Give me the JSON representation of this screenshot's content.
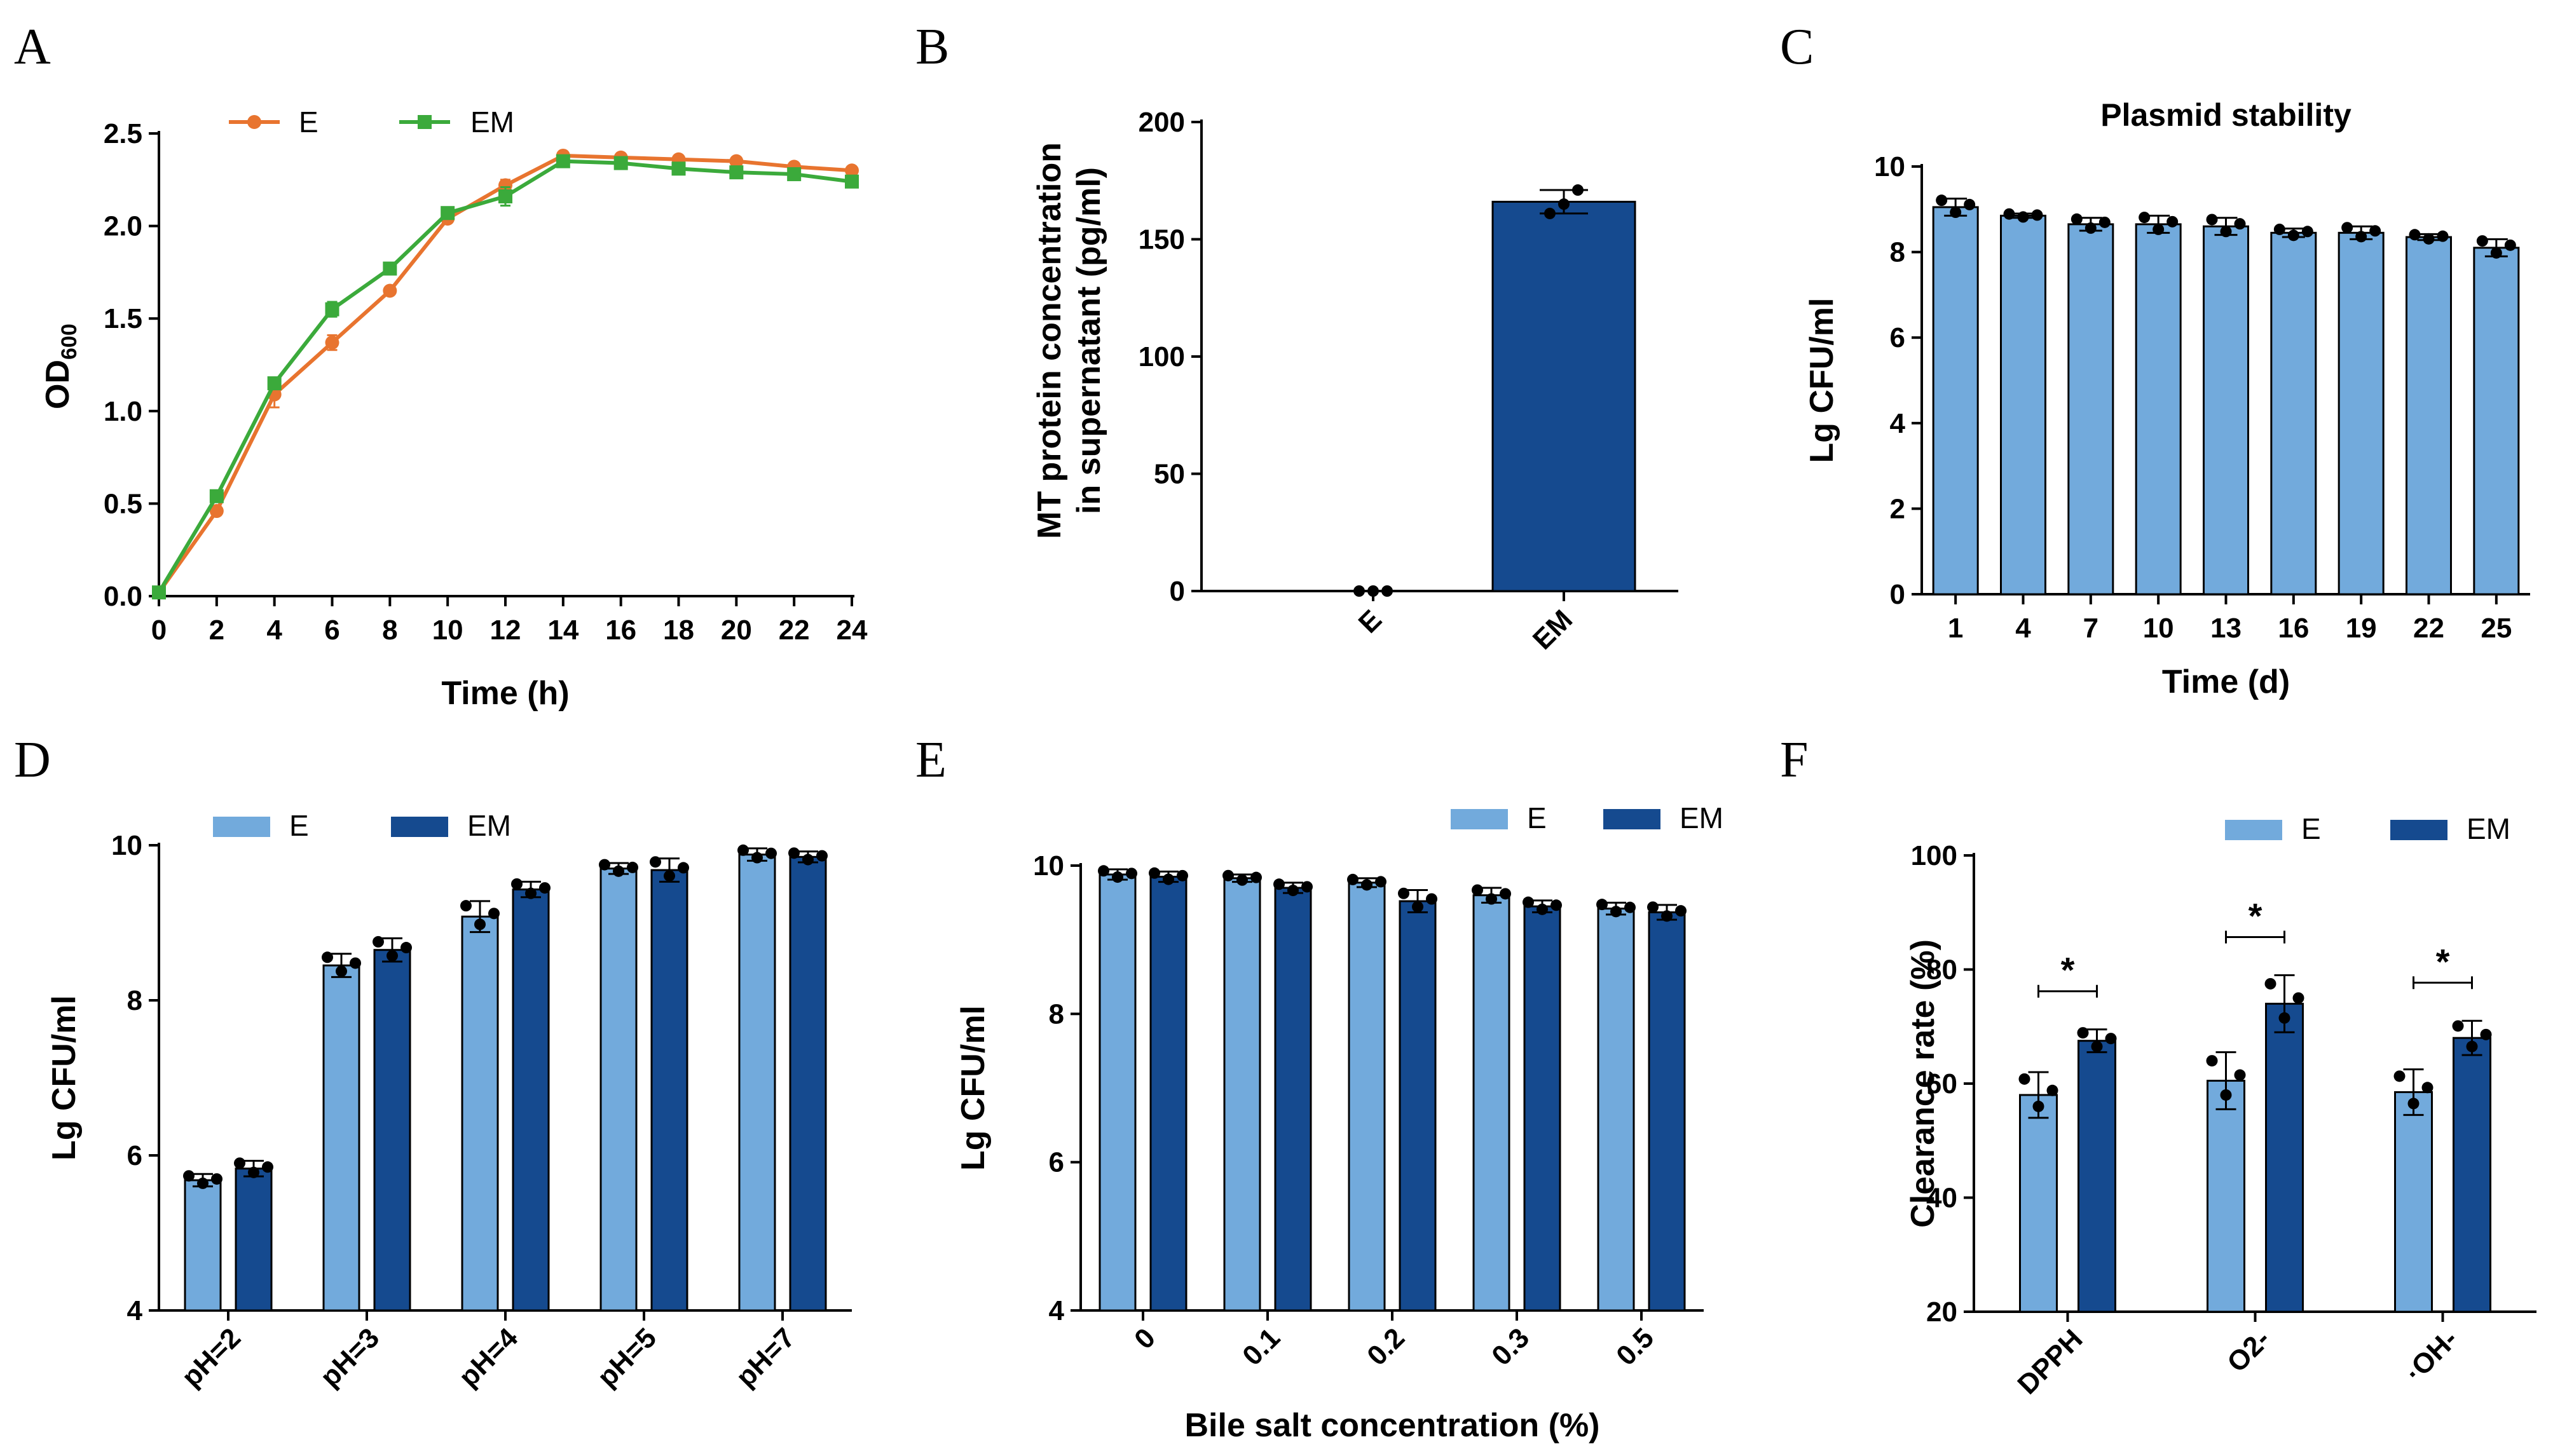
{
  "colors": {
    "orange": "#E8742F",
    "green": "#3BAA3B",
    "light_blue": "#72AADC",
    "dark_blue": "#154A8F",
    "axis": "#000000"
  },
  "chart_data": [
    {
      "panel": "A",
      "type": "line",
      "title": "",
      "xlabel": "Time (h)",
      "ylabel": "OD600",
      "ylabel_main": "OD",
      "ylabel_sub": "600",
      "x": [
        0,
        2,
        4,
        6,
        8,
        10,
        12,
        14,
        16,
        18,
        20,
        22,
        24
      ],
      "x_ticks": [
        "0",
        "2",
        "4",
        "6",
        "8",
        "10",
        "12",
        "14",
        "16",
        "18",
        "20",
        "22",
        "24"
      ],
      "xlim": [
        0,
        24
      ],
      "ylim": [
        0,
        2.5
      ],
      "y_ticks": [
        "0.0",
        "0.5",
        "1.0",
        "1.5",
        "2.0",
        "2.5"
      ],
      "series": [
        {
          "name": "E",
          "values": [
            0.02,
            0.46,
            1.09,
            1.37,
            1.65,
            2.04,
            2.22,
            2.38,
            2.37,
            2.36,
            2.35,
            2.32,
            2.3
          ],
          "errors": [
            0,
            0.02,
            0.07,
            0.04,
            0.02,
            0.02,
            0.03,
            0.01,
            0.01,
            0.01,
            0.01,
            0.01,
            0.01
          ]
        },
        {
          "name": "EM",
          "values": [
            0.02,
            0.54,
            1.15,
            1.55,
            1.77,
            2.07,
            2.16,
            2.35,
            2.34,
            2.31,
            2.29,
            2.28,
            2.24
          ],
          "errors": [
            0,
            0.02,
            0.03,
            0.04,
            0.02,
            0.02,
            0.05,
            0.01,
            0.01,
            0.01,
            0.02,
            0.01,
            0.02
          ]
        }
      ],
      "legend": [
        "E",
        "EM"
      ]
    },
    {
      "panel": "B",
      "type": "bar",
      "title": "",
      "xlabel": "",
      "ylabel_line1": "MT protein concentration",
      "ylabel_line2": "in supernatant (pg/ml)",
      "categories": [
        "E",
        "EM"
      ],
      "values": [
        0,
        166
      ],
      "errors": [
        0,
        5
      ],
      "points": [
        [
          0,
          0,
          0
        ],
        [
          161,
          165,
          171
        ]
      ],
      "ylim": [
        0,
        200
      ],
      "y_ticks": [
        "0",
        "50",
        "100",
        "150",
        "200"
      ]
    },
    {
      "panel": "C",
      "type": "bar",
      "title": "Plasmid stability",
      "xlabel": "Time (d)",
      "ylabel": "Lg CFU/ml",
      "categories": [
        "1",
        "4",
        "7",
        "10",
        "13",
        "16",
        "19",
        "22",
        "25"
      ],
      "values": [
        9.05,
        8.85,
        8.65,
        8.65,
        8.6,
        8.45,
        8.45,
        8.35,
        8.1
      ],
      "errors": [
        0.2,
        0.05,
        0.15,
        0.2,
        0.2,
        0.1,
        0.15,
        0.07,
        0.2
      ],
      "ylim": [
        0,
        10
      ],
      "y_ticks": [
        "0",
        "2",
        "4",
        "6",
        "8",
        "10"
      ]
    },
    {
      "panel": "D",
      "type": "bar",
      "title": "",
      "xlabel": "",
      "ylabel": "Lg CFU/ml",
      "categories": [
        "pH=2",
        "pH=3",
        "pH=4",
        "pH=5",
        "pH=7"
      ],
      "series": [
        {
          "name": "E",
          "values": [
            5.68,
            8.45,
            9.08,
            9.7,
            9.88
          ],
          "errors": [
            0.08,
            0.15,
            0.2,
            0.07,
            0.08
          ]
        },
        {
          "name": "EM",
          "values": [
            5.83,
            8.65,
            9.43,
            9.68,
            9.85
          ],
          "errors": [
            0.1,
            0.15,
            0.1,
            0.15,
            0.07
          ]
        }
      ],
      "ylim": [
        4,
        10
      ],
      "y_ticks": [
        "4",
        "6",
        "8",
        "10"
      ],
      "legend": [
        "E",
        "EM"
      ]
    },
    {
      "panel": "E",
      "type": "bar",
      "title": "",
      "xlabel": "Bile salt concentration (%)",
      "ylabel": "Lg CFU/ml",
      "categories": [
        "0",
        "0.1",
        "0.2",
        "0.3",
        "0.5"
      ],
      "series": [
        {
          "name": "E",
          "values": [
            9.88,
            9.83,
            9.77,
            9.6,
            9.42
          ],
          "errors": [
            0.07,
            0.05,
            0.06,
            0.1,
            0.08
          ]
        },
        {
          "name": "EM",
          "values": [
            9.85,
            9.7,
            9.52,
            9.45,
            9.37
          ],
          "errors": [
            0.07,
            0.07,
            0.15,
            0.08,
            0.1
          ]
        }
      ],
      "ylim": [
        4,
        10
      ],
      "y_ticks": [
        "4",
        "6",
        "8",
        "10"
      ],
      "legend": [
        "E",
        "EM"
      ]
    },
    {
      "panel": "F",
      "type": "bar",
      "title": "",
      "xlabel": "",
      "ylabel": "Clearance rate (%)",
      "categories": [
        "DPPH",
        "O2-",
        "·OH-"
      ],
      "series": [
        {
          "name": "E",
          "values": [
            58,
            60.5,
            58.5
          ],
          "errors": [
            4,
            5,
            4
          ]
        },
        {
          "name": "EM",
          "values": [
            67.5,
            74,
            68
          ],
          "errors": [
            2,
            5,
            3
          ]
        }
      ],
      "significance": [
        "*",
        "*",
        "*"
      ],
      "ylim": [
        20,
        100
      ],
      "y_ticks": [
        "20",
        "40",
        "60",
        "80",
        "100"
      ],
      "legend": [
        "E",
        "EM"
      ]
    }
  ],
  "panel_labels": [
    "A",
    "B",
    "C",
    "D",
    "E",
    "F"
  ]
}
